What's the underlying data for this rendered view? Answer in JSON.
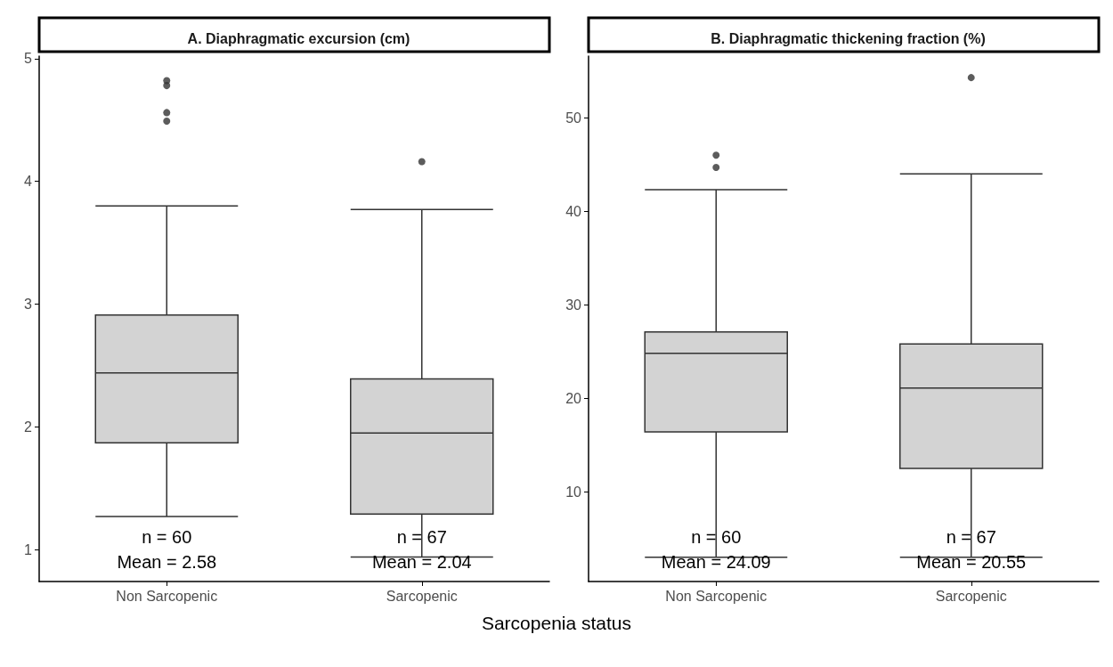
{
  "chart_data": [
    {
      "type": "box",
      "title": "A. Diaphragmatic excursion (cm)",
      "categories": [
        "Non Sarcopenic",
        "Sarcopenic"
      ],
      "color": "#d3d3d3",
      "ylim": [
        0.74,
        5.02
      ],
      "yticks": [
        1,
        2,
        3,
        4,
        5
      ],
      "grid": false,
      "boxes": [
        {
          "low": 1.27,
          "q1": 1.87,
          "median": 2.44,
          "q3": 2.91,
          "high": 3.8,
          "outliers": [
            4.82,
            4.78,
            4.56,
            4.49
          ]
        },
        {
          "low": 0.94,
          "q1": 1.29,
          "median": 1.95,
          "q3": 2.39,
          "high": 3.77,
          "outliers": [
            4.16
          ]
        }
      ],
      "annotations": [
        "n = 60",
        "Mean = 2.58",
        "n = 67",
        "Mean = 2.04"
      ]
    },
    {
      "type": "box",
      "title": "B. Diaphragmatic thickening fraction (%)",
      "xlabel": "Sarcopenia status",
      "categories": [
        "Non Sarcopenic",
        "Sarcopenic"
      ],
      "color": "#d3d3d3",
      "ylim": [
        0.4,
        56.6
      ],
      "yticks": [
        10,
        20,
        30,
        40,
        50
      ],
      "grid": false,
      "boxes": [
        {
          "low": 3,
          "q1": 16.4,
          "median": 24.8,
          "q3": 27.1,
          "high": 42.3,
          "outliers": [
            46,
            44.7
          ]
        },
        {
          "low": 3,
          "q1": 12.5,
          "median": 21.1,
          "q3": 25.8,
          "high": 44,
          "outliers": [
            54.3
          ]
        }
      ],
      "annotations": [
        "n = 60",
        "Mean = 24.09",
        "n = 67",
        "Mean = 20.55"
      ]
    }
  ]
}
